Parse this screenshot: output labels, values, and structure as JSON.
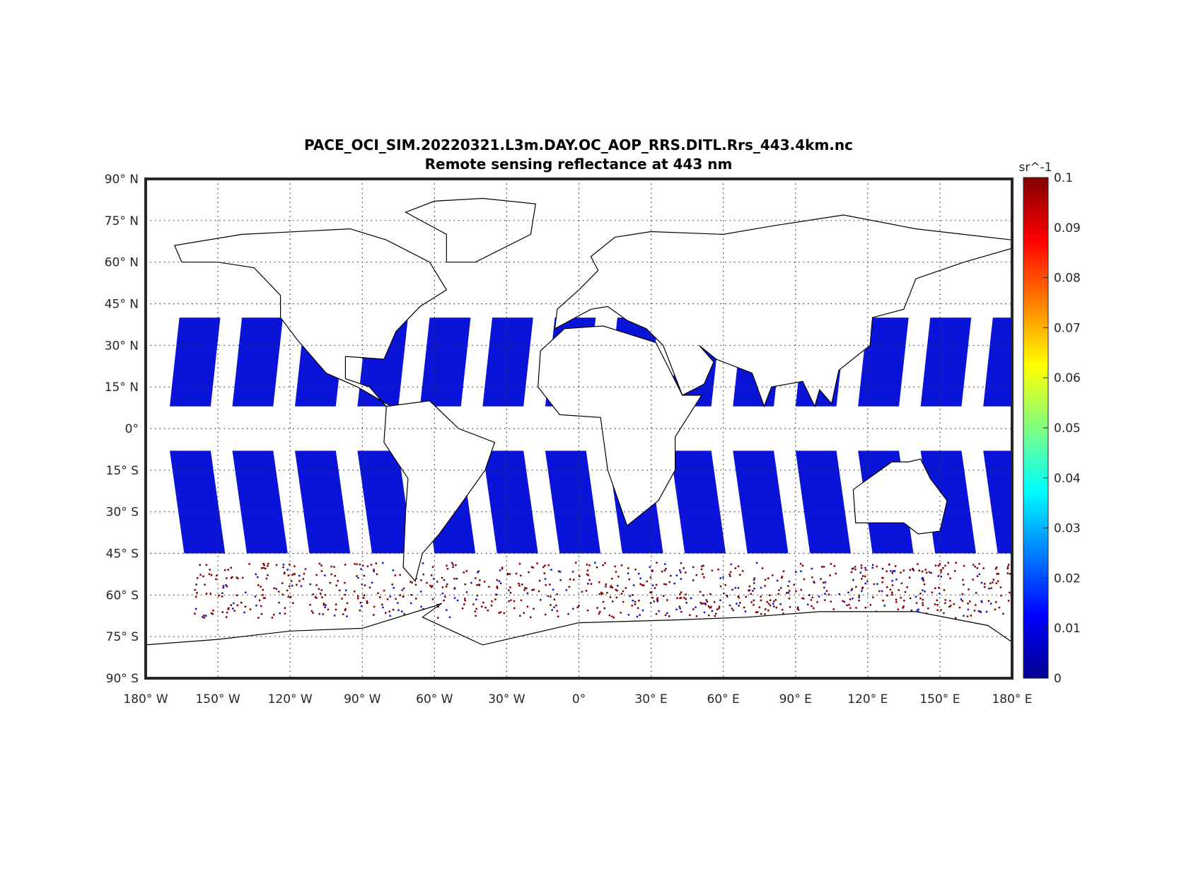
{
  "chart_data": {
    "type": "heatmap",
    "title": "PACE_OCI_SIM.20220321.L3m.DAY.OC_AOP_RRS.DITL.Rrs_443.4km.nc",
    "subtitle": "Remote sensing reflectance at 443 nm",
    "projection": "equirectangular",
    "xlim": [
      -180,
      180
    ],
    "ylim": [
      -90,
      90
    ],
    "grid": true,
    "x_ticks": [
      -180,
      -150,
      -120,
      -90,
      -60,
      -30,
      0,
      30,
      60,
      90,
      120,
      150,
      180
    ],
    "x_tick_labels": [
      "180° W",
      "150° W",
      "120° W",
      "90° W",
      "60° W",
      "30° W",
      "0°",
      "30° E",
      "60° E",
      "90° E",
      "120° E",
      "150° E",
      "180° E"
    ],
    "y_ticks": [
      90,
      75,
      60,
      45,
      30,
      15,
      0,
      -15,
      -30,
      -45,
      -60,
      -75,
      -90
    ],
    "y_tick_labels": [
      "90° N",
      "75° N",
      "60° N",
      "45° N",
      "30° N",
      "15° N",
      "0°",
      "15° S",
      "30° S",
      "45° S",
      "60° S",
      "75° S",
      "90° S"
    ],
    "colorbar": {
      "label": "sr^-1",
      "colormap": "jet",
      "range": [
        0,
        0.1
      ],
      "ticks": [
        0,
        0.01,
        0.02,
        0.03,
        0.04,
        0.05,
        0.06,
        0.07,
        0.08,
        0.09,
        0.1
      ],
      "tick_labels": [
        "0",
        "0.01",
        "0.02",
        "0.03",
        "0.04",
        "0.05",
        "0.06",
        "0.07",
        "0.08",
        "0.09",
        "0.1"
      ],
      "location": "right"
    },
    "description_of_values": {
      "open_ocean_typical": 0.005,
      "southern_ocean_saturated": 0.1
    },
    "colors": {
      "low": "#00008f",
      "ocean_typical": "#0a14d8",
      "high": "#800000",
      "coastline": "#000000",
      "frame": "#262626"
    }
  }
}
